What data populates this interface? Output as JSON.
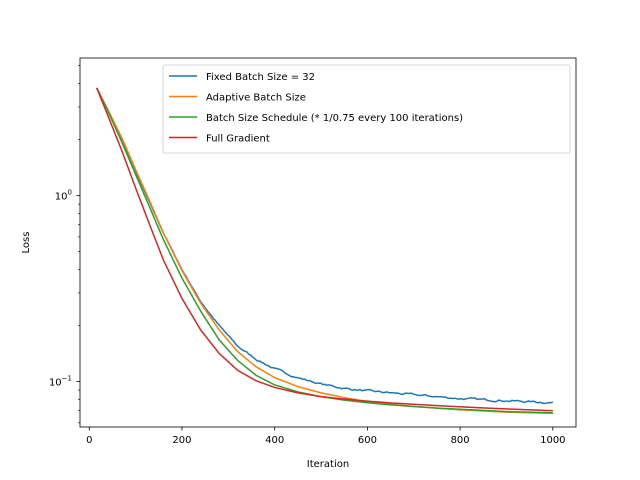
{
  "chart_data": {
    "type": "line",
    "title": "",
    "xlabel": "Iteration",
    "ylabel": "Loss",
    "xscale": "linear",
    "yscale": "log",
    "xlim": [
      -20,
      1050
    ],
    "ylim": [
      0.057,
      5.5
    ],
    "x_ticks": [
      0,
      200,
      400,
      600,
      800,
      1000
    ],
    "y_ticks": [
      {
        "value": 1.0,
        "base": "10",
        "exp": "0"
      },
      {
        "value": 0.1,
        "base": "10",
        "exp": "−1"
      }
    ],
    "grid": false,
    "legend": "top-right",
    "series": [
      {
        "name": "Fixed Batch Size = 32",
        "color": "#1f77b4",
        "noise": true,
        "x": [
          16,
          40,
          70,
          100,
          130,
          160,
          200,
          240,
          280,
          320,
          360,
          400,
          450,
          500,
          550,
          600,
          650,
          700,
          750,
          800,
          850,
          900,
          950,
          1000
        ],
        "y": [
          3.8,
          2.9,
          2.0,
          1.35,
          0.92,
          0.63,
          0.4,
          0.27,
          0.2,
          0.155,
          0.132,
          0.117,
          0.105,
          0.097,
          0.092,
          0.089,
          0.087,
          0.085,
          0.083,
          0.081,
          0.08,
          0.079,
          0.078,
          0.077
        ]
      },
      {
        "name": "Adaptive Batch Size",
        "color": "#ff7f0e",
        "noise": false,
        "x": [
          16,
          40,
          70,
          100,
          130,
          160,
          200,
          240,
          280,
          320,
          360,
          400,
          450,
          500,
          550,
          600,
          650,
          700,
          750,
          800,
          850,
          900,
          950,
          1000
        ],
        "y": [
          3.8,
          2.9,
          2.05,
          1.38,
          0.94,
          0.63,
          0.395,
          0.265,
          0.19,
          0.145,
          0.12,
          0.105,
          0.094,
          0.087,
          0.082,
          0.078,
          0.0755,
          0.0735,
          0.072,
          0.0705,
          0.0695,
          0.0685,
          0.068,
          0.0675
        ]
      },
      {
        "name": "Batch Size Schedule (* 1/0.75 every 100 iterations)",
        "color": "#2ca02c",
        "noise": false,
        "x": [
          16,
          40,
          70,
          100,
          130,
          160,
          200,
          240,
          280,
          320,
          360,
          400,
          450,
          500,
          550,
          600,
          650,
          700,
          750,
          800,
          850,
          900,
          950,
          1000
        ],
        "y": [
          3.8,
          2.85,
          1.95,
          1.3,
          0.87,
          0.58,
          0.36,
          0.24,
          0.168,
          0.13,
          0.108,
          0.096,
          0.088,
          0.083,
          0.0795,
          0.077,
          0.075,
          0.0735,
          0.072,
          0.071,
          0.07,
          0.069,
          0.0685,
          0.068
        ]
      },
      {
        "name": "Full Gradient",
        "color": "#d62728",
        "noise": false,
        "x": [
          16,
          40,
          70,
          100,
          130,
          160,
          200,
          240,
          280,
          320,
          360,
          400,
          450,
          500,
          550,
          600,
          650,
          700,
          750,
          800,
          850,
          900,
          950,
          1000
        ],
        "y": [
          3.8,
          2.7,
          1.75,
          1.1,
          0.7,
          0.45,
          0.28,
          0.19,
          0.142,
          0.115,
          0.101,
          0.093,
          0.087,
          0.083,
          0.0805,
          0.0785,
          0.0768,
          0.0755,
          0.0743,
          0.0732,
          0.0722,
          0.0713,
          0.0705,
          0.0698
        ]
      }
    ]
  }
}
